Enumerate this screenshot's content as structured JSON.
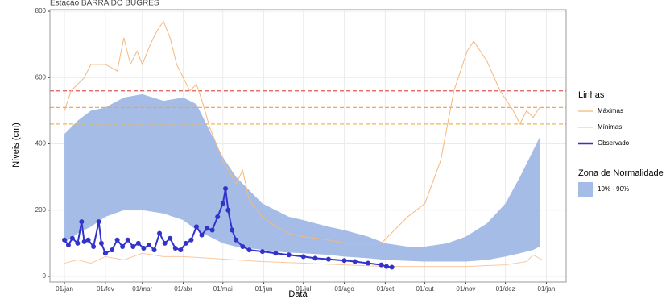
{
  "chart_data": {
    "type": "line",
    "title": "Estação BARRA DO BUGRES",
    "x_label": "Data",
    "y_label": "Níveis (cm)",
    "xlim": [
      -11,
      380
    ],
    "ylim": [
      -17,
      805
    ],
    "xticks": [
      {
        "value": 0,
        "label": "01/jan"
      },
      {
        "value": 31,
        "label": "01/fev"
      },
      {
        "value": 59,
        "label": "01/mar"
      },
      {
        "value": 90,
        "label": "01/abr"
      },
      {
        "value": 120,
        "label": "01/mai"
      },
      {
        "value": 151,
        "label": "01/jun"
      },
      {
        "value": 181,
        "label": "01/jul"
      },
      {
        "value": 212,
        "label": "01/ago"
      },
      {
        "value": 243,
        "label": "01/set"
      },
      {
        "value": 273,
        "label": "01/out"
      },
      {
        "value": 304,
        "label": "01/nov"
      },
      {
        "value": 334,
        "label": "01/dez"
      },
      {
        "value": 365,
        "label": "01/jan"
      }
    ],
    "yticks": [
      0,
      200,
      400,
      600,
      800
    ],
    "grid": true,
    "legend_title_lines": "Linhas",
    "legend_title_band": "Zona de Normalidade",
    "band": {
      "name": "10% - 90%",
      "color": "#a5bce6",
      "x": [
        0,
        10,
        20,
        31,
        45,
        59,
        75,
        90,
        100,
        110,
        120,
        130,
        140,
        150,
        160,
        170,
        181,
        200,
        212,
        230,
        243,
        260,
        273,
        290,
        304,
        320,
        334,
        345,
        355,
        360
      ],
      "upper": [
        430,
        470,
        500,
        510,
        540,
        550,
        530,
        540,
        520,
        440,
        360,
        300,
        260,
        220,
        200,
        180,
        170,
        150,
        140,
        120,
        100,
        90,
        90,
        100,
        120,
        160,
        220,
        300,
        380,
        420
      ],
      "lower": [
        100,
        130,
        150,
        180,
        200,
        200,
        190,
        170,
        140,
        120,
        100,
        90,
        85,
        80,
        75,
        72,
        70,
        65,
        60,
        55,
        50,
        47,
        45,
        45,
        45,
        50,
        60,
        70,
        80,
        90
      ]
    },
    "series": [
      {
        "name": "Máximas",
        "color": "#f5b77a",
        "x": [
          0,
          5,
          15,
          20,
          31,
          40,
          45,
          50,
          55,
          59,
          65,
          70,
          75,
          80,
          85,
          90,
          95,
          100,
          105,
          110,
          120,
          130,
          135,
          140,
          150,
          160,
          170,
          181,
          200,
          212,
          230,
          240,
          250,
          260,
          273,
          285,
          295,
          305,
          310,
          315,
          320,
          330,
          340,
          345,
          350,
          355,
          360
        ],
        "values": [
          500,
          560,
          600,
          640,
          640,
          620,
          720,
          640,
          680,
          640,
          700,
          740,
          770,
          720,
          640,
          600,
          560,
          580,
          520,
          450,
          350,
          280,
          320,
          230,
          180,
          150,
          130,
          120,
          110,
          100,
          100,
          100,
          140,
          180,
          220,
          350,
          560,
          680,
          710,
          680,
          650,
          560,
          500,
          460,
          500,
          480,
          510
        ]
      },
      {
        "name": "Mínimas",
        "color": "#f9c9a0",
        "x": [
          0,
          10,
          20,
          31,
          45,
          59,
          75,
          90,
          110,
          130,
          150,
          181,
          212,
          243,
          273,
          304,
          334,
          350,
          355,
          362
        ],
        "values": [
          40,
          50,
          40,
          60,
          50,
          70,
          60,
          60,
          55,
          50,
          45,
          40,
          35,
          30,
          30,
          30,
          35,
          45,
          65,
          50
        ]
      },
      {
        "name": "Observado",
        "color": "#3333cc",
        "points": true,
        "x": [
          0,
          3,
          6,
          10,
          13,
          15,
          18,
          22,
          26,
          28,
          31,
          36,
          40,
          44,
          48,
          52,
          56,
          60,
          64,
          68,
          72,
          76,
          80,
          84,
          88,
          92,
          96,
          100,
          104,
          108,
          112,
          116,
          120,
          122,
          124,
          127,
          130,
          135,
          140,
          150,
          160,
          170,
          181,
          190,
          200,
          212,
          220,
          230,
          240,
          244,
          248
        ],
        "values": [
          110,
          95,
          115,
          100,
          165,
          105,
          110,
          90,
          165,
          100,
          70,
          80,
          110,
          90,
          110,
          90,
          100,
          85,
          95,
          80,
          130,
          100,
          115,
          85,
          80,
          100,
          110,
          150,
          125,
          145,
          140,
          180,
          220,
          265,
          200,
          140,
          110,
          90,
          80,
          75,
          70,
          65,
          60,
          55,
          52,
          48,
          45,
          40,
          35,
          30,
          28
        ]
      }
    ],
    "hlines": [
      {
        "value": 560,
        "color": "#e05a5a"
      },
      {
        "value": 510,
        "color": "#f0a040"
      },
      {
        "value": 460,
        "color": "#f0b848"
      }
    ]
  }
}
